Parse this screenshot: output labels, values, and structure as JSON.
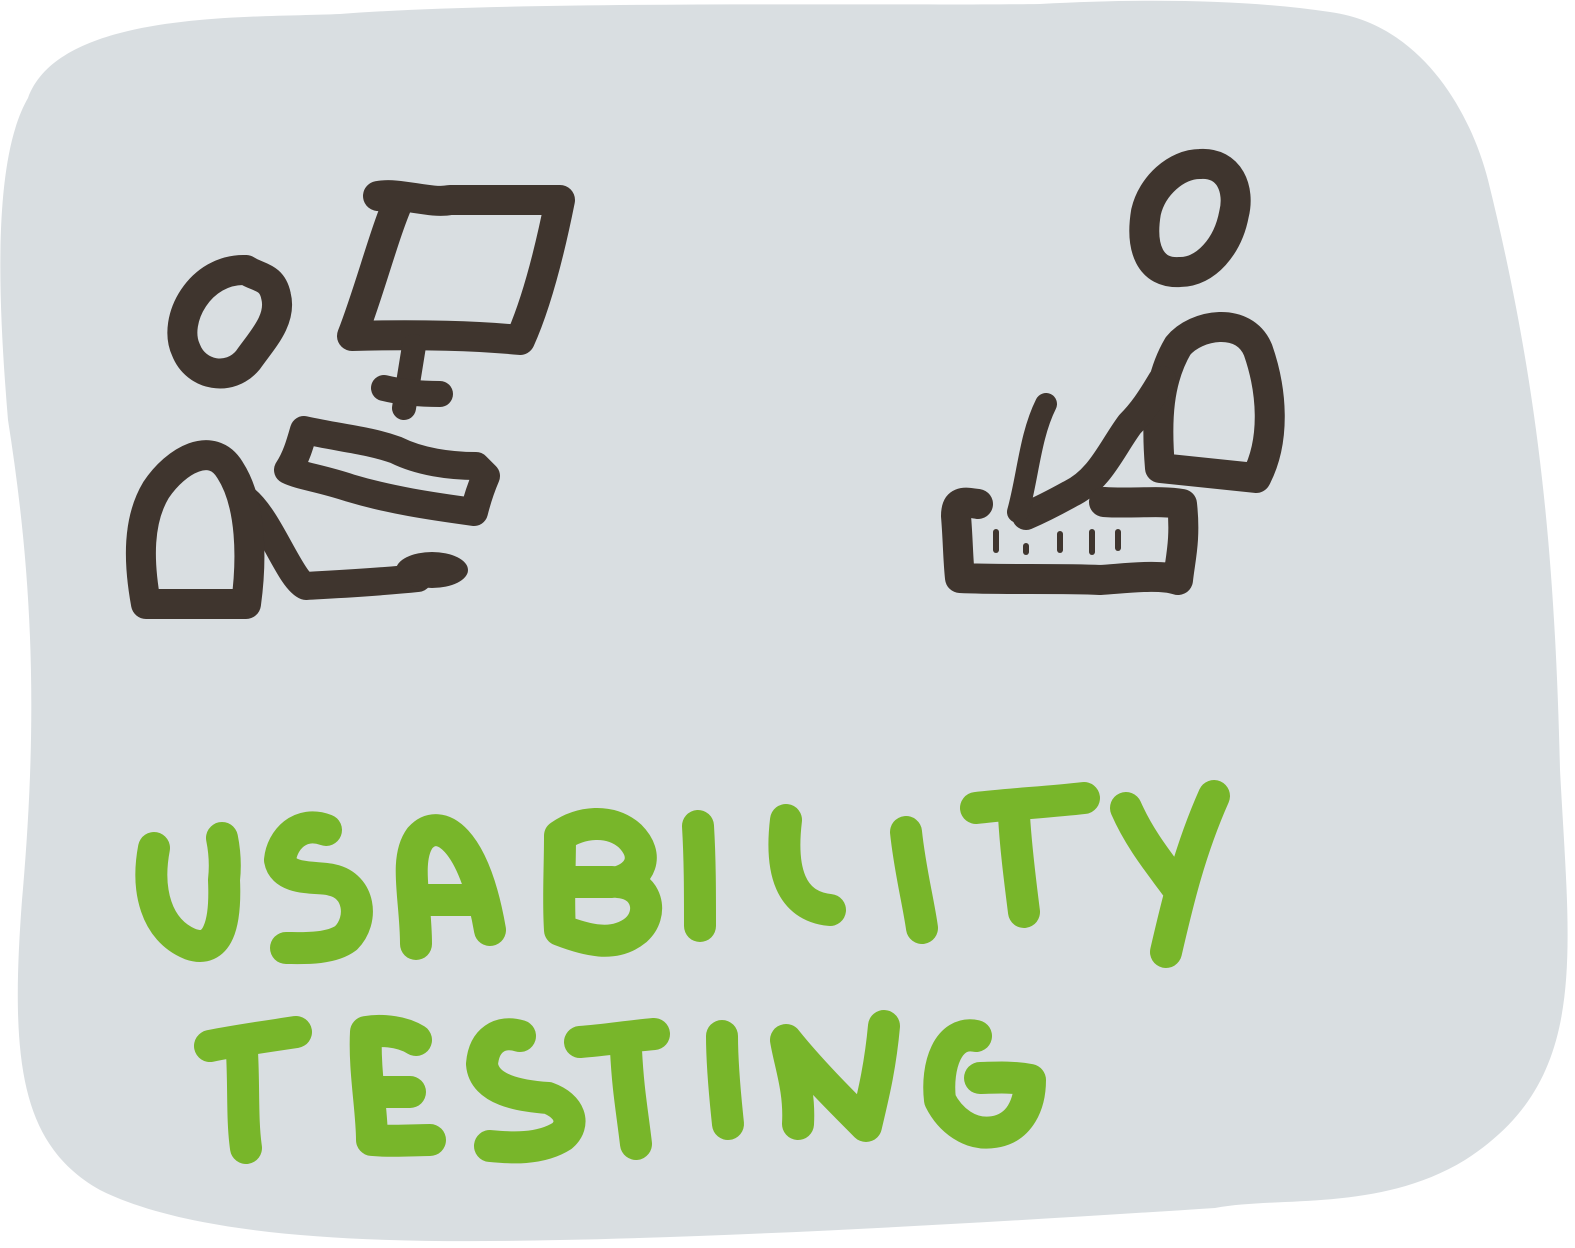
{
  "illustration": {
    "title_line_1": "USABILITY",
    "title_line_2": "TESTING",
    "colors": {
      "background_blob": "#d9dee1",
      "ink": "#3f352e",
      "text_green": "#78b62a",
      "tester_shirt": "#dc1a2e",
      "observer_shirt": "#1f6fff",
      "white": "#ffffff"
    },
    "figures": [
      "tester-at-computer",
      "observer-with-notes"
    ]
  }
}
